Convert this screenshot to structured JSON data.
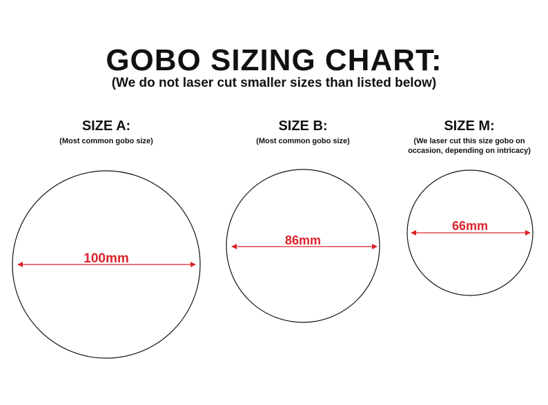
{
  "title": "GOBO SIZING CHART:",
  "subtitle": "(We do not laser cut smaller sizes than listed below)",
  "accent_color": "#d9232b",
  "sizes": [
    {
      "label": "SIZE A:",
      "note": "(Most common gobo size)",
      "dimension": "100mm"
    },
    {
      "label": "SIZE B:",
      "note": "(Most common gobo size)",
      "dimension": "86mm"
    },
    {
      "label": "SIZE M:",
      "note": "(We laser cut this size gobo on occasion, depending on intricacy)",
      "dimension": "66mm"
    }
  ]
}
